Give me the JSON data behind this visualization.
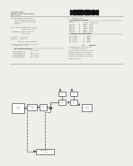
{
  "page_bg": "#f0eeea",
  "barcode_color": "#111111",
  "header_left_lines": [
    "(12) United States",
    "Patent Application Publication",
    "Dunnecker et al."
  ],
  "header_right_lines": [
    "Pub. No.:  US 2013/0000000 A1",
    "Pub. Date:    Mar. 28, 2013"
  ],
  "divider_color": "#999999",
  "meta_lines_left": [
    "(54) LOW TEMPERATURE SELECTIVE",
    "     CATALYTIC REDUCTION CATALYST",
    "     AND ASSOCIATED SYSTEMS AND",
    "     METHODS",
    "",
    "(75) Inventors: First Name, City, ST (US);",
    "               Second Name, City, ST (US)",
    "",
    "(73) Assignee: COMPANY NAME LLC,",
    "               City, ST (US)",
    "",
    "(21) Appl. No.: 13/000,000",
    "",
    "(22) Filed:     Aug. 1, 2011",
    "",
    "              Related U.S. Application Data",
    "",
    "(60) Provisional application No. 61/000,000,",
    "     filed on Aug. 1, 2010."
  ],
  "prior_pub_title": "PRIOR PUBLICATION DATA",
  "prior_pub_rows": [
    [
      "US 2012/000000 A1",
      "Jan. 5, 2012"
    ],
    [
      "US 2012/000001 A1",
      "Jan. 12, 2012"
    ],
    [
      "US 2012/000002 A1",
      "Feb. 2, 2012"
    ],
    [
      "US 2012/000003 A1",
      "Mar. 1, 2012"
    ]
  ],
  "ref_title": "References Cited",
  "us_refs_title": "U.S. PATENT DOCUMENTS",
  "us_refs": [
    [
      "6,000,000",
      "A",
      "12/2003",
      "Inventor et al."
    ],
    [
      "6,100,000",
      "B1",
      "8/2000",
      "Inventor"
    ],
    [
      "6,200,000",
      "B2",
      "3/2001",
      "Inventor"
    ],
    [
      "6,300,000",
      "B1",
      "10/2001",
      "Inventor"
    ],
    [
      "6,400,000",
      "B2",
      "6/2002",
      "Inventor"
    ],
    [
      "6,500,000",
      "B1",
      "9/2003",
      "Inventor"
    ]
  ],
  "foreign_title": "FOREIGN PATENT DOCUMENTS",
  "foreign_refs": [
    [
      "EP  1000000",
      "A1",
      "*/2005"
    ],
    [
      "EP  1100000",
      "A2",
      "*/2006"
    ],
    [
      "EP  1200000",
      "A1",
      "*/2007"
    ],
    [
      "EP  1300000",
      "B1",
      "*/2008"
    ]
  ],
  "abstract_title": "ABSTRACT",
  "abstract_text": "A low temperature selective catalytic reduction catalyst system and associated methods are described. The system includes a catalyst substrate and catalyst components for reducing nitrogen oxides in exhaust gas streams at low temperatures.",
  "text_color": "#444444",
  "text_color_light": "#666666",
  "diagram_box_color": "#dddddd",
  "diagram_line_color": "#555555"
}
